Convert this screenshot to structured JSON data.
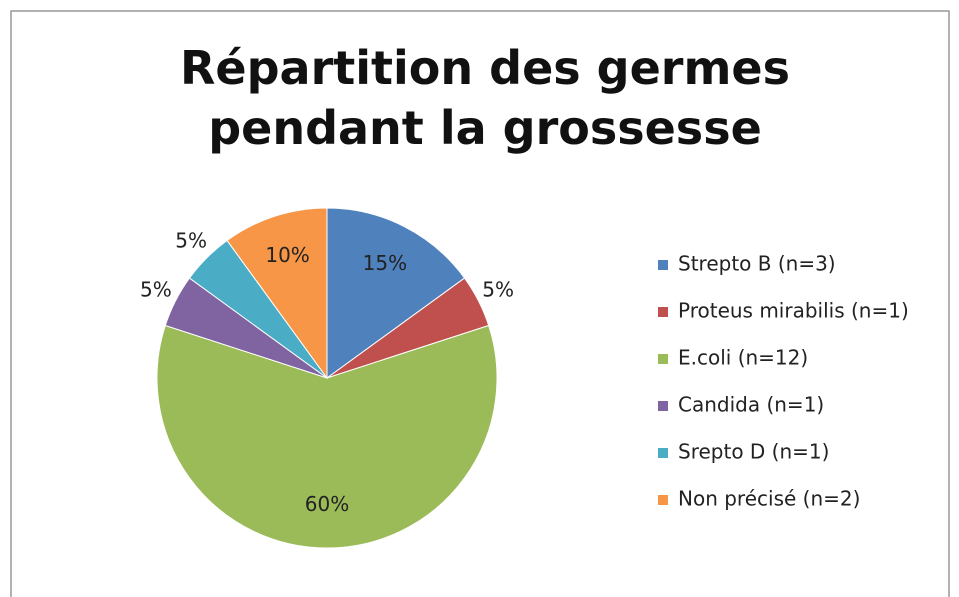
{
  "chart_data": {
    "type": "pie",
    "title": "Répartition des germes pendant la grossesse",
    "categories": [
      "Strepto B (n=3)",
      "Proteus mirabilis (n=1)",
      "E.coli (n=12)",
      "Candida (n=1)",
      "Srepto D (n=1)",
      "Non précisé (n=2)"
    ],
    "values": [
      15,
      5,
      60,
      5,
      5,
      10
    ],
    "value_labels": [
      "15%",
      "5%",
      "60%",
      "5%",
      "5%",
      "10%"
    ],
    "colors": [
      "#4f81bd",
      "#c0504d",
      "#9bbb59",
      "#8064a2",
      "#4bacc6",
      "#f79646"
    ],
    "legend": "right"
  }
}
